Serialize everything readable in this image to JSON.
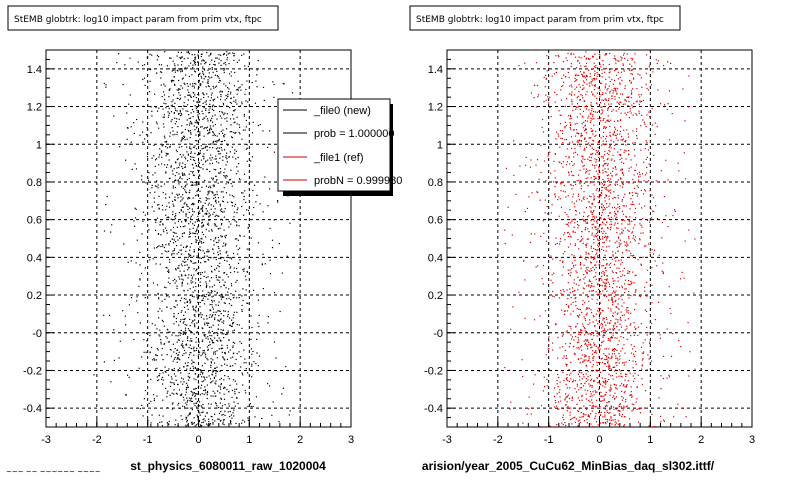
{
  "footer": {
    "text": "~~~ ~~ ~~~~~~ ~~~~"
  },
  "legend": {
    "entries": [
      {
        "label": "_file0 (new)",
        "color": "#000000"
      },
      {
        "label": "prob = 1.000000",
        "color": "#000000"
      },
      {
        "label": "_file1 (ref)",
        "color": "#cc0000"
      },
      {
        "label": "probN = 0.999980",
        "color": "#cc0000"
      }
    ]
  },
  "chart_data": [
    {
      "type": "scatter",
      "title": "StEMB globtrk: log10 impact param from prim vtx, ftpc",
      "xlabel": "st_physics_6080011_raw_1020004",
      "ylabel": "",
      "xlim": [
        -3,
        3
      ],
      "ylim": [
        -0.5,
        1.5
      ],
      "x_ticks": [
        -3,
        -2,
        -1,
        0,
        1,
        2,
        3
      ],
      "y_ticks": [
        -0.4,
        -0.2,
        -0.0,
        0.2,
        0.4,
        0.6,
        0.8,
        1.0,
        1.2,
        1.4
      ],
      "y_tick_labels": [
        "-0.4",
        "-0.2",
        "-0",
        "0.2",
        "0.4",
        "0.6",
        "0.8",
        "1",
        "1.2",
        "1.4"
      ],
      "grid": true,
      "marker_color": "#000000",
      "series": [
        {
          "x_center": 0.0,
          "x_spread": 0.55,
          "y_range": [
            -0.5,
            1.5
          ],
          "density_points": 2600
        }
      ]
    },
    {
      "type": "scatter",
      "title": "StEMB globtrk: log10 impact param from prim vtx, ftpc",
      "xlabel": "arision/year_2005_CuCu62_MinBias_daq_sl302.ittf/",
      "ylabel": "",
      "xlim": [
        -3,
        3
      ],
      "ylim": [
        -0.5,
        1.5
      ],
      "x_ticks": [
        -3,
        -2,
        -1,
        0,
        1,
        2,
        3
      ],
      "y_ticks": [
        -0.4,
        -0.2,
        -0.0,
        0.2,
        0.4,
        0.6,
        0.8,
        1.0,
        1.2,
        1.4
      ],
      "y_tick_labels": [
        "-0.4",
        "-0.2",
        "-0",
        "0.2",
        "0.4",
        "0.6",
        "0.8",
        "1",
        "1.2",
        "1.4"
      ],
      "grid": true,
      "marker_color": "#dd0000",
      "series": [
        {
          "x_center": 0.0,
          "x_spread": 0.55,
          "y_range": [
            -0.5,
            1.5
          ],
          "density_points": 2600
        }
      ]
    }
  ]
}
